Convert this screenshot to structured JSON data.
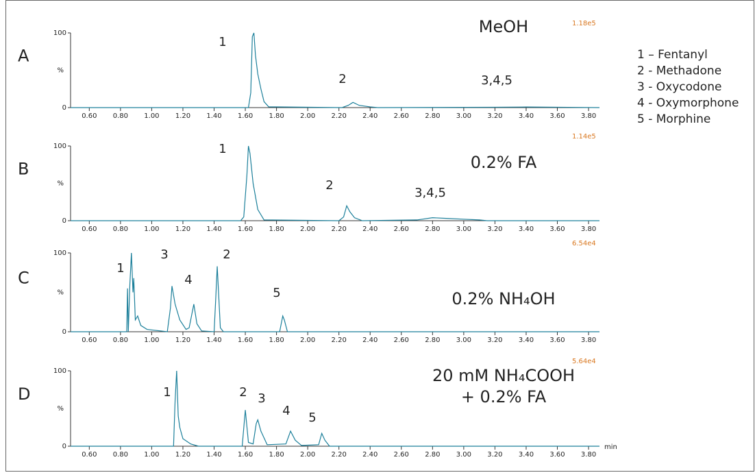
{
  "chart_data": [
    {
      "type": "line",
      "panel_label": "A",
      "intensity_label": "1.18e5",
      "condition": [
        "MeOH"
      ],
      "peak_labels": [
        "1",
        "2",
        "3,4,5"
      ],
      "ylabel": "%",
      "xlim": [
        0.48,
        3.87
      ],
      "ylim": [
        0,
        100
      ],
      "yticks": [
        0,
        100
      ],
      "xticks": [
        {
          "value": 0.6,
          "label": "0.60"
        },
        {
          "value": 0.8,
          "label": "0.80"
        },
        {
          "value": 1.0,
          "label": "1.00"
        },
        {
          "value": 1.2,
          "label": "1.20"
        },
        {
          "value": 1.4,
          "label": "1.40"
        },
        {
          "value": 1.6,
          "label": "1.60"
        },
        {
          "value": 1.8,
          "label": "1.80"
        },
        {
          "value": 2.0,
          "label": "2.00"
        },
        {
          "value": 2.2,
          "label": "2.20"
        },
        {
          "value": 2.4,
          "label": "2.40"
        },
        {
          "value": 2.6,
          "label": "2.60"
        },
        {
          "value": 2.8,
          "label": "2.80"
        },
        {
          "value": 3.0,
          "label": "3.00"
        },
        {
          "value": 3.2,
          "label": "3.20"
        },
        {
          "value": 3.4,
          "label": "3.40"
        },
        {
          "value": 3.6,
          "label": "3.60"
        },
        {
          "value": 3.8,
          "label": "3.80"
        }
      ],
      "color": "#1b7f9a",
      "x": [
        0.48,
        1.62,
        1.635,
        1.645,
        1.655,
        1.665,
        1.68,
        1.7,
        1.72,
        1.75,
        2.22,
        2.26,
        2.29,
        2.33,
        2.4,
        2.45,
        3.2,
        3.4,
        3.6,
        3.87
      ],
      "values": [
        0,
        0,
        20,
        95,
        100,
        70,
        45,
        25,
        8,
        1,
        0,
        3,
        7,
        3,
        1,
        0,
        0.5,
        0.8,
        0.5,
        0
      ]
    },
    {
      "type": "line",
      "panel_label": "B",
      "intensity_label": "1.14e5",
      "condition": [
        "0.2% FA"
      ],
      "peak_labels": [
        "1",
        "2",
        "3,4,5"
      ],
      "ylabel": "%",
      "xlim": [
        0.48,
        3.87
      ],
      "ylim": [
        0,
        100
      ],
      "yticks": [
        0,
        100
      ],
      "xticks": [
        {
          "value": 0.6,
          "label": "0.60"
        },
        {
          "value": 0.8,
          "label": "0.80"
        },
        {
          "value": 1.0,
          "label": "1.00"
        },
        {
          "value": 1.2,
          "label": "1.20"
        },
        {
          "value": 1.4,
          "label": "1.40"
        },
        {
          "value": 1.6,
          "label": "1.60"
        },
        {
          "value": 1.8,
          "label": "1.80"
        },
        {
          "value": 2.0,
          "label": "2.00"
        },
        {
          "value": 2.2,
          "label": "2.20"
        },
        {
          "value": 2.4,
          "label": "2.40"
        },
        {
          "value": 2.6,
          "label": "2.60"
        },
        {
          "value": 2.8,
          "label": "2.80"
        },
        {
          "value": 3.0,
          "label": "3.00"
        },
        {
          "value": 3.2,
          "label": "3.20"
        },
        {
          "value": 3.4,
          "label": "3.40"
        },
        {
          "value": 3.6,
          "label": "3.60"
        },
        {
          "value": 3.8,
          "label": "3.80"
        }
      ],
      "color": "#1b7f9a",
      "x": [
        0.48,
        1.57,
        1.59,
        1.61,
        1.62,
        1.63,
        1.65,
        1.68,
        1.72,
        2.2,
        2.23,
        2.25,
        2.27,
        2.3,
        2.35,
        2.7,
        2.8,
        2.9,
        3.0,
        3.1,
        3.15,
        3.87
      ],
      "values": [
        0,
        0,
        5,
        60,
        100,
        90,
        50,
        15,
        1,
        0,
        5,
        20,
        12,
        4,
        0,
        1,
        4,
        3,
        2,
        1,
        0,
        0
      ]
    },
    {
      "type": "line",
      "panel_label": "C",
      "intensity_label": "6.54e4",
      "condition": [
        "0.2% NH₄OH"
      ],
      "peak_labels": [
        "1",
        "3",
        "4",
        "2",
        "5"
      ],
      "ylabel": "%",
      "xlim": [
        0.48,
        3.87
      ],
      "ylim": [
        0,
        100
      ],
      "yticks": [
        0,
        100
      ],
      "xticks": [
        {
          "value": 0.6,
          "label": "0.60"
        },
        {
          "value": 0.8,
          "label": "0.80"
        },
        {
          "value": 1.0,
          "label": "1.00"
        },
        {
          "value": 1.2,
          "label": "1.20"
        },
        {
          "value": 1.4,
          "label": "1.40"
        },
        {
          "value": 1.6,
          "label": "1.60"
        },
        {
          "value": 1.8,
          "label": "1.80"
        },
        {
          "value": 2.0,
          "label": "2.00"
        },
        {
          "value": 2.2,
          "label": "2.20"
        },
        {
          "value": 2.4,
          "label": "2.40"
        },
        {
          "value": 2.6,
          "label": "2.60"
        },
        {
          "value": 2.8,
          "label": "2.80"
        },
        {
          "value": 3.0,
          "label": "3.00"
        },
        {
          "value": 3.2,
          "label": "3.20"
        },
        {
          "value": 3.4,
          "label": "3.40"
        },
        {
          "value": 3.6,
          "label": "3.60"
        },
        {
          "value": 3.8,
          "label": "3.80"
        }
      ],
      "color": "#1b7f9a",
      "x": [
        0.48,
        0.84,
        0.845,
        0.85,
        0.86,
        0.87,
        0.88,
        0.885,
        0.895,
        0.91,
        0.93,
        0.97,
        1.1,
        1.12,
        1.13,
        1.15,
        1.18,
        1.22,
        1.24,
        1.26,
        1.27,
        1.29,
        1.32,
        1.4,
        1.41,
        1.42,
        1.44,
        1.46,
        1.82,
        1.84,
        1.85,
        1.87,
        3.87
      ],
      "values": [
        0,
        0,
        55,
        0,
        60,
        100,
        50,
        68,
        15,
        20,
        8,
        3,
        0,
        30,
        58,
        35,
        15,
        3,
        5,
        25,
        35,
        10,
        1,
        0,
        40,
        83,
        5,
        0,
        0,
        20,
        15,
        0,
        0
      ]
    },
    {
      "type": "line",
      "panel_label": "D",
      "intensity_label": "5.64e4",
      "condition": [
        "20 mM NH₄COOH",
        "+ 0.2% FA"
      ],
      "peak_labels": [
        "1",
        "2",
        "3",
        "4",
        "5"
      ],
      "ylabel": "%",
      "xlabel": "min",
      "xlim": [
        0.48,
        3.87
      ],
      "ylim": [
        0,
        100
      ],
      "yticks": [
        0,
        100
      ],
      "xticks": [
        {
          "value": 0.6,
          "label": "0.60"
        },
        {
          "value": 0.8,
          "label": "0.80"
        },
        {
          "value": 1.0,
          "label": "1.00"
        },
        {
          "value": 1.2,
          "label": "1.20"
        },
        {
          "value": 1.4,
          "label": "1.40"
        },
        {
          "value": 1.6,
          "label": "1.60"
        },
        {
          "value": 1.8,
          "label": "1.80"
        },
        {
          "value": 2.0,
          "label": "2.00"
        },
        {
          "value": 2.2,
          "label": "2.20"
        },
        {
          "value": 2.4,
          "label": "2.40"
        },
        {
          "value": 2.6,
          "label": "2.60"
        },
        {
          "value": 2.8,
          "label": "2.80"
        },
        {
          "value": 3.0,
          "label": "3.00"
        },
        {
          "value": 3.2,
          "label": "3.20"
        },
        {
          "value": 3.4,
          "label": "3.40"
        },
        {
          "value": 3.6,
          "label": "3.60"
        },
        {
          "value": 3.8,
          "label": "3.80"
        }
      ],
      "color": "#1b7f9a",
      "x": [
        0.48,
        1.14,
        1.15,
        1.16,
        1.17,
        1.18,
        1.2,
        1.25,
        1.3,
        1.58,
        1.6,
        1.62,
        1.65,
        1.67,
        1.68,
        1.7,
        1.74,
        1.86,
        1.89,
        1.92,
        1.96,
        2.07,
        2.09,
        2.11,
        2.14,
        3.87
      ],
      "values": [
        0,
        0,
        60,
        100,
        40,
        25,
        10,
        3,
        0,
        0,
        48,
        5,
        3,
        30,
        35,
        20,
        2,
        3,
        20,
        8,
        1,
        2,
        17,
        8,
        0,
        0
      ]
    }
  ],
  "legend": [
    "1 – Fentanyl",
    "2 - Methadone",
    "3 - Oxycodone",
    "4 - Oxymorphone",
    "5 - Morphine"
  ]
}
